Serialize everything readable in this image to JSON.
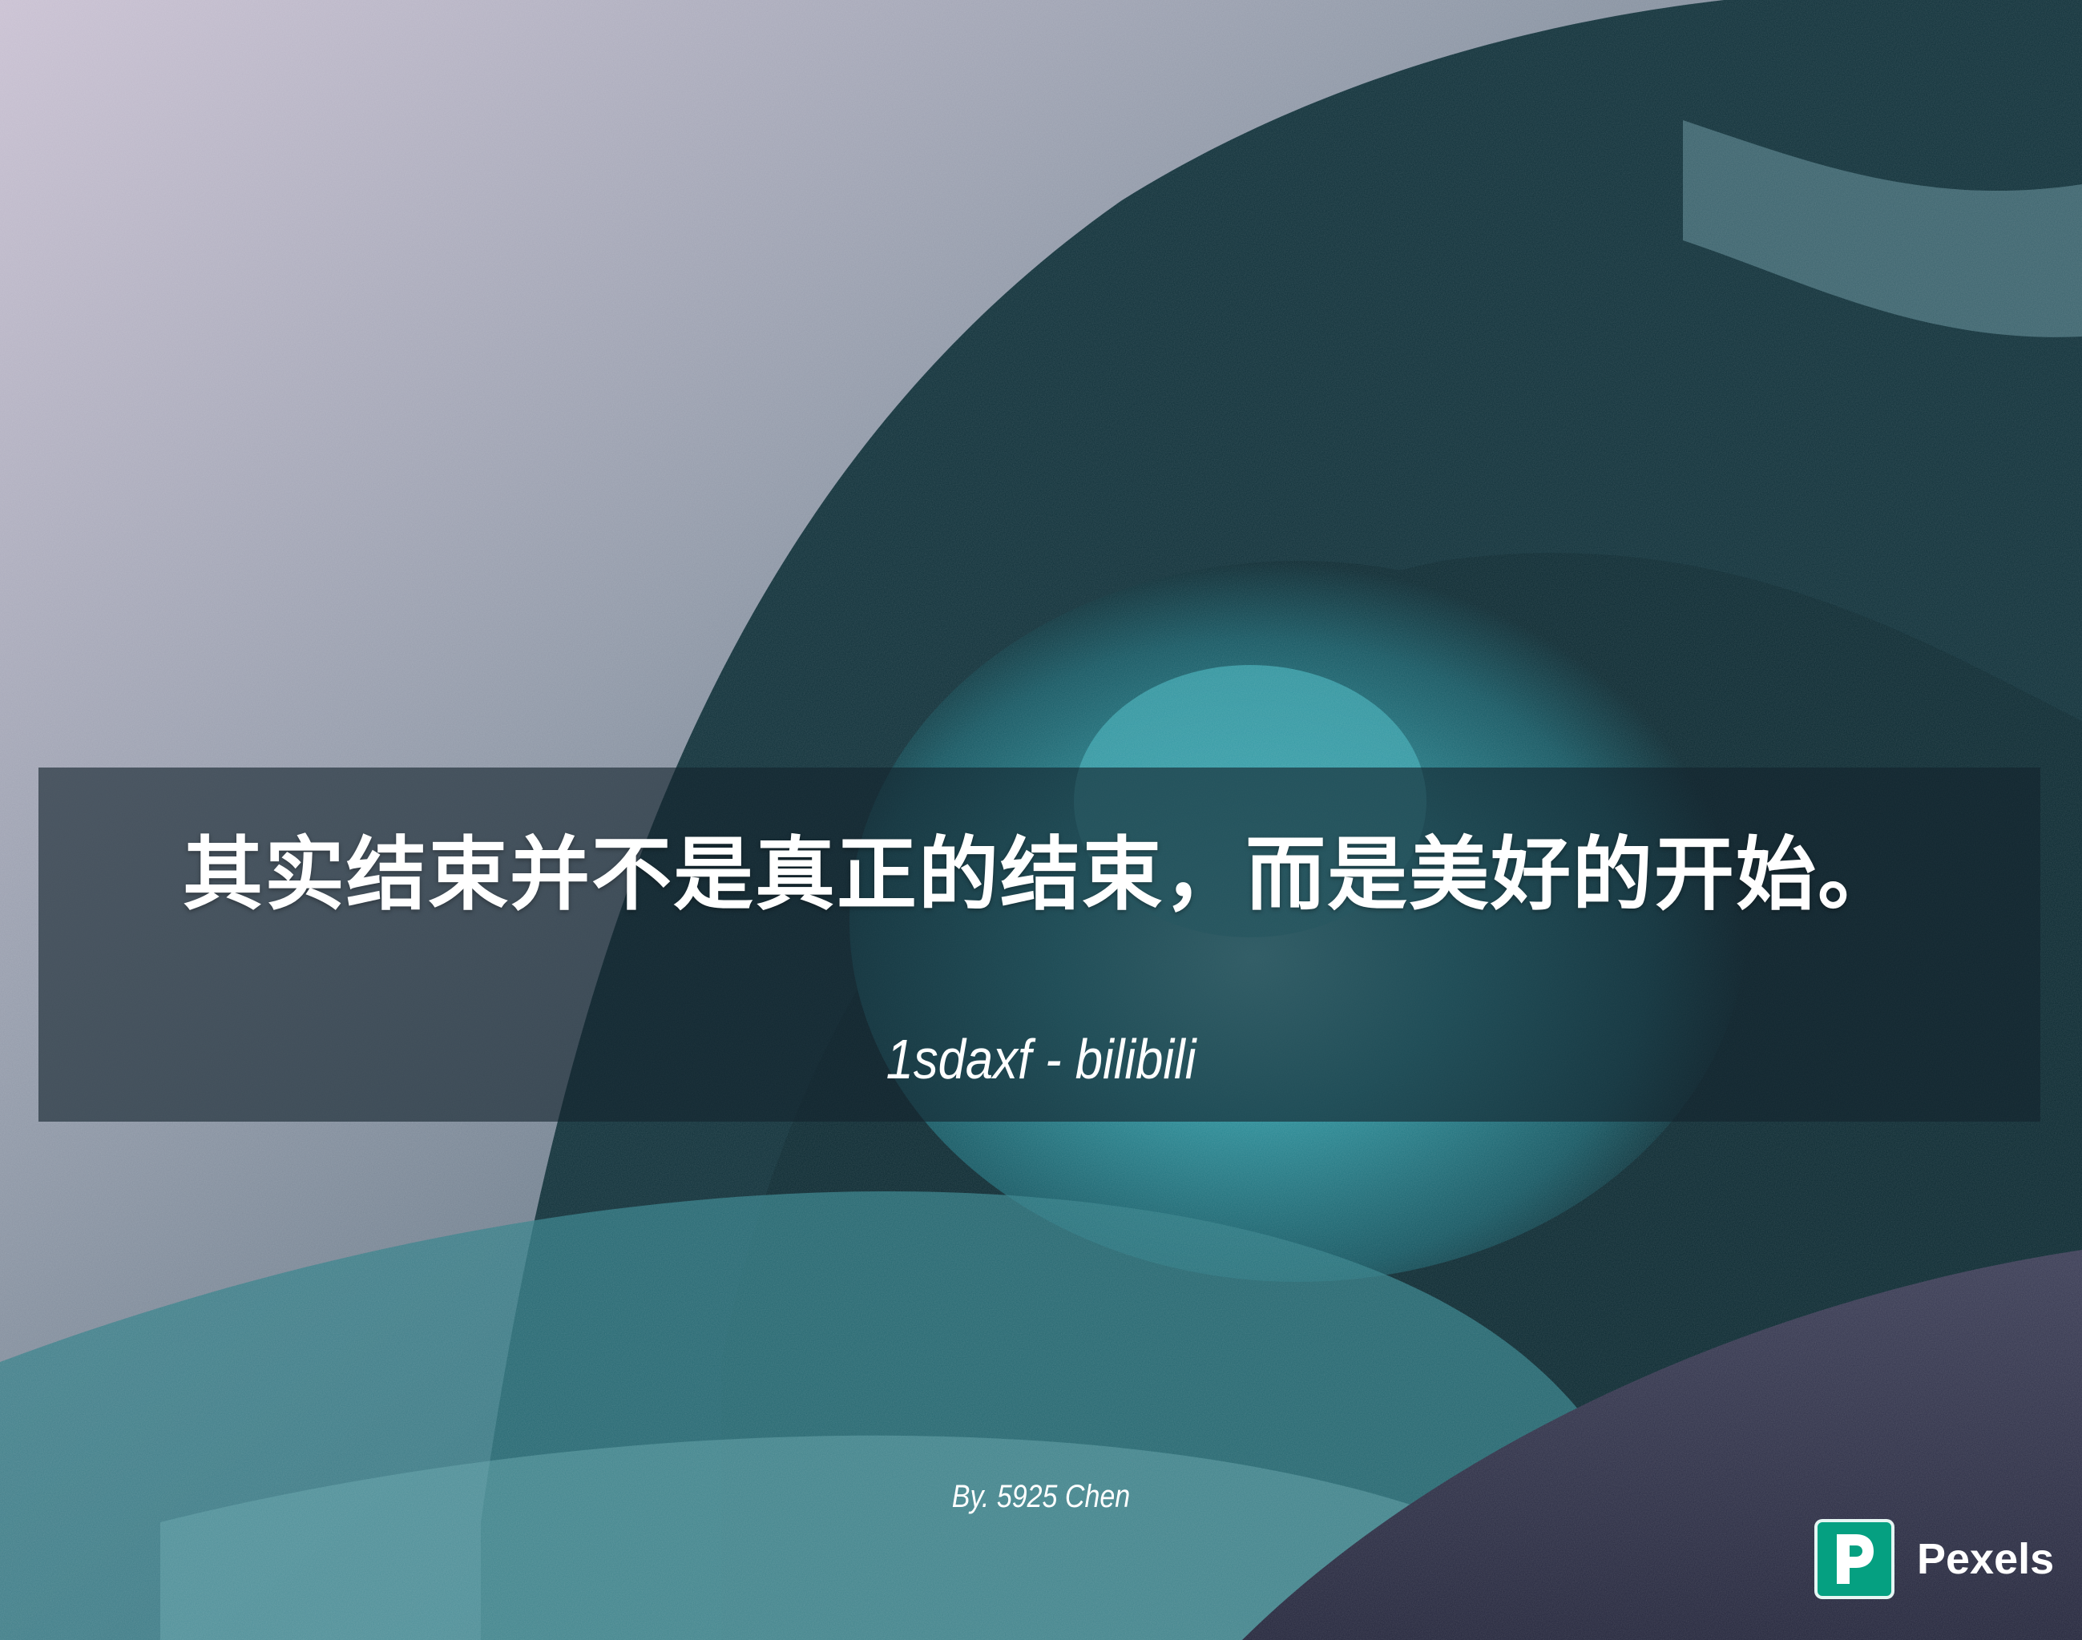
{
  "quote": "其实结束并不是真正的结束，而是美好的开始。",
  "attribution": "1sdaxf - bilibili",
  "byline": "By. 5925 Chen",
  "watermark": {
    "name": "Pexels",
    "logo_icon": "pexels-logo-icon"
  },
  "colors": {
    "deep_water": "#0a2830",
    "wave_teal": "#2a8d98",
    "spray_sky": "#bfb7c9",
    "brand_green": "#05a081"
  }
}
